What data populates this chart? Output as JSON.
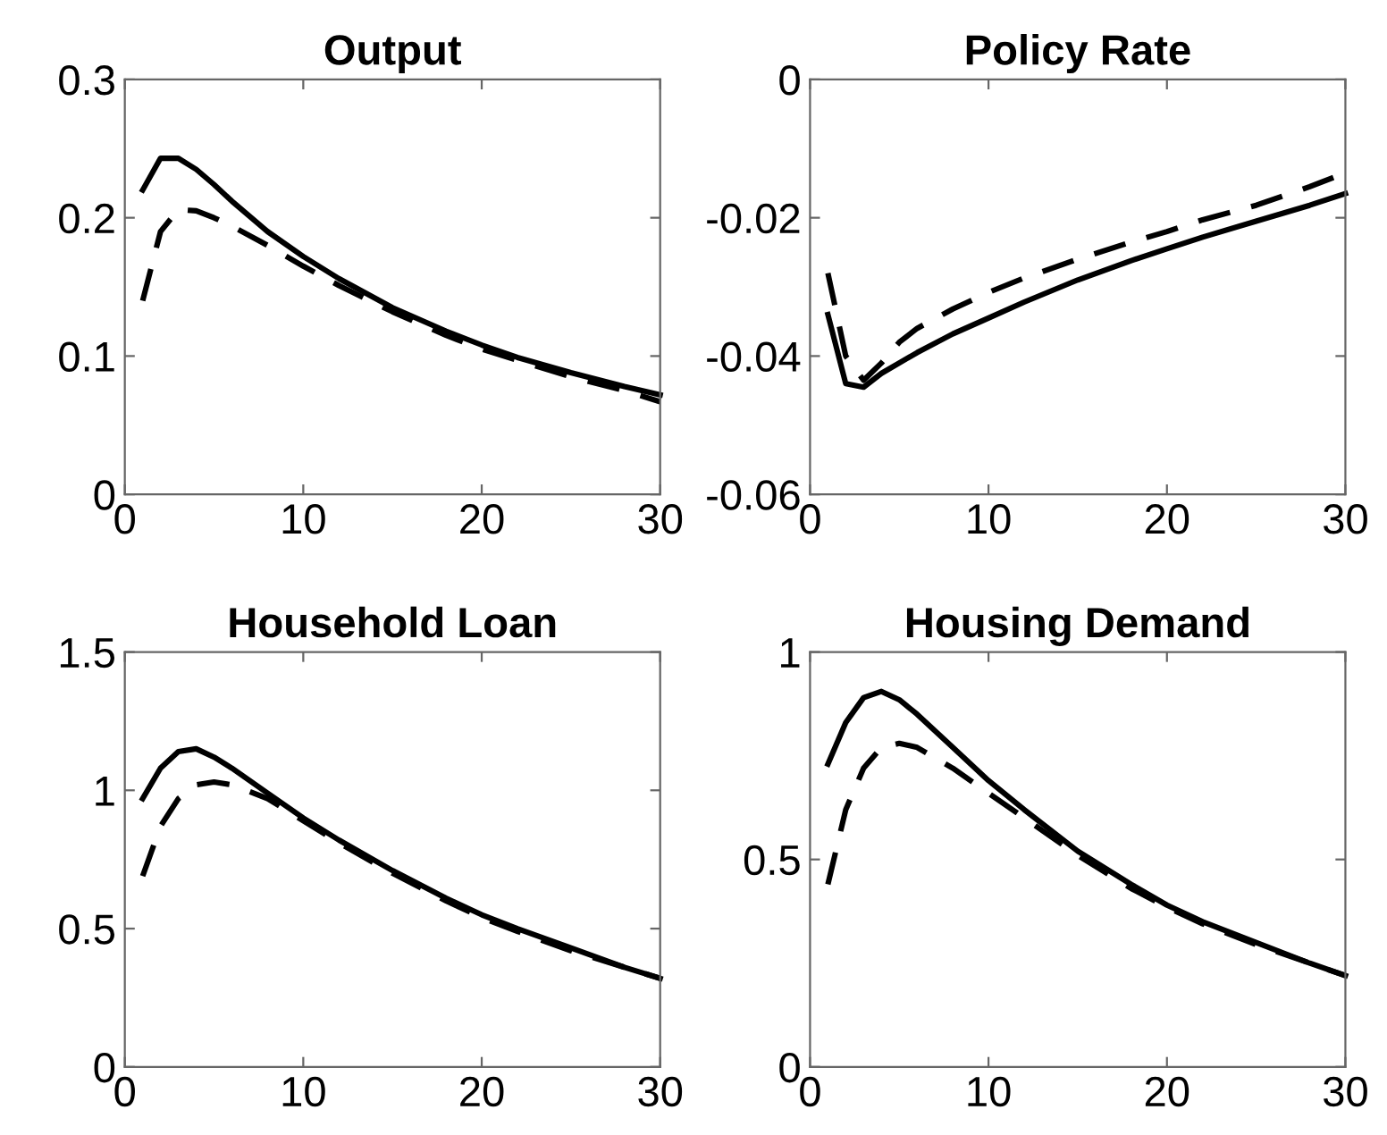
{
  "chart_data": [
    {
      "type": "line",
      "title": "Output",
      "x": [
        1,
        2,
        3,
        4,
        5,
        6,
        8,
        10,
        12,
        15,
        18,
        20,
        22,
        25,
        28,
        30
      ],
      "xlim": [
        0,
        30
      ],
      "xticks": [
        0,
        10,
        20,
        30
      ],
      "ylim": [
        0,
        0.3
      ],
      "yticks": [
        0,
        0.1,
        0.2,
        0.3
      ],
      "series": [
        {
          "color": "#000000",
          "line_style": "solid",
          "values": [
            0.22,
            0.243,
            0.243,
            0.235,
            0.224,
            0.212,
            0.19,
            0.172,
            0.156,
            0.135,
            0.118,
            0.108,
            0.099,
            0.088,
            0.078,
            0.072
          ]
        },
        {
          "color": "#000000",
          "line_style": "dashed",
          "values": [
            0.14,
            0.19,
            0.206,
            0.205,
            0.2,
            0.194,
            0.18,
            0.165,
            0.151,
            0.132,
            0.115,
            0.105,
            0.097,
            0.085,
            0.075,
            0.067
          ]
        }
      ]
    },
    {
      "type": "line",
      "title": "Policy Rate",
      "x": [
        1,
        2,
        3,
        4,
        5,
        6,
        8,
        10,
        12,
        15,
        18,
        20,
        22,
        25,
        28,
        30
      ],
      "xlim": [
        0,
        30
      ],
      "xticks": [
        0,
        10,
        20,
        30
      ],
      "ylim": [
        -0.06,
        0
      ],
      "yticks": [
        -0.06,
        -0.04,
        -0.02,
        0
      ],
      "series": [
        {
          "color": "#000000",
          "line_style": "solid",
          "values": [
            -0.034,
            -0.044,
            -0.0445,
            -0.0425,
            -0.041,
            -0.0395,
            -0.0368,
            -0.0345,
            -0.0322,
            -0.029,
            -0.0262,
            -0.0245,
            -0.0228,
            -0.0205,
            -0.0182,
            -0.0165
          ]
        },
        {
          "color": "#000000",
          "line_style": "dashed",
          "values": [
            -0.028,
            -0.04,
            -0.0435,
            -0.041,
            -0.038,
            -0.036,
            -0.0332,
            -0.0308,
            -0.0287,
            -0.026,
            -0.0235,
            -0.022,
            -0.0203,
            -0.0182,
            -0.0155,
            -0.0135
          ]
        }
      ]
    },
    {
      "type": "line",
      "title": "Household Loan",
      "x": [
        1,
        2,
        3,
        4,
        5,
        6,
        8,
        10,
        12,
        15,
        18,
        20,
        22,
        25,
        28,
        30
      ],
      "xlim": [
        0,
        30
      ],
      "xticks": [
        0,
        10,
        20,
        30
      ],
      "ylim": [
        0,
        1.5
      ],
      "yticks": [
        0,
        0.5,
        1,
        1.5
      ],
      "series": [
        {
          "color": "#000000",
          "line_style": "solid",
          "values": [
            0.97,
            1.08,
            1.14,
            1.15,
            1.12,
            1.08,
            0.99,
            0.9,
            0.82,
            0.71,
            0.61,
            0.55,
            0.5,
            0.43,
            0.36,
            0.32
          ]
        },
        {
          "color": "#000000",
          "line_style": "dashed",
          "values": [
            0.69,
            0.87,
            0.97,
            1.02,
            1.03,
            1.02,
            0.97,
            0.89,
            0.81,
            0.7,
            0.6,
            0.54,
            0.49,
            0.42,
            0.36,
            0.32
          ]
        }
      ]
    },
    {
      "type": "line",
      "title": "Housing Demand",
      "x": [
        1,
        2,
        3,
        4,
        5,
        6,
        8,
        10,
        12,
        15,
        18,
        20,
        22,
        25,
        28,
        30
      ],
      "xlim": [
        0,
        30
      ],
      "xticks": [
        0,
        10,
        20,
        30
      ],
      "ylim": [
        0,
        1
      ],
      "yticks": [
        0,
        0.5,
        1
      ],
      "series": [
        {
          "color": "#000000",
          "line_style": "solid",
          "values": [
            0.73,
            0.83,
            0.89,
            0.905,
            0.885,
            0.85,
            0.77,
            0.69,
            0.62,
            0.52,
            0.44,
            0.39,
            0.35,
            0.3,
            0.25,
            0.22
          ]
        },
        {
          "color": "#000000",
          "line_style": "dashed",
          "values": [
            0.44,
            0.62,
            0.72,
            0.77,
            0.78,
            0.77,
            0.72,
            0.66,
            0.6,
            0.51,
            0.43,
            0.385,
            0.345,
            0.295,
            0.25,
            0.22
          ]
        }
      ]
    }
  ]
}
